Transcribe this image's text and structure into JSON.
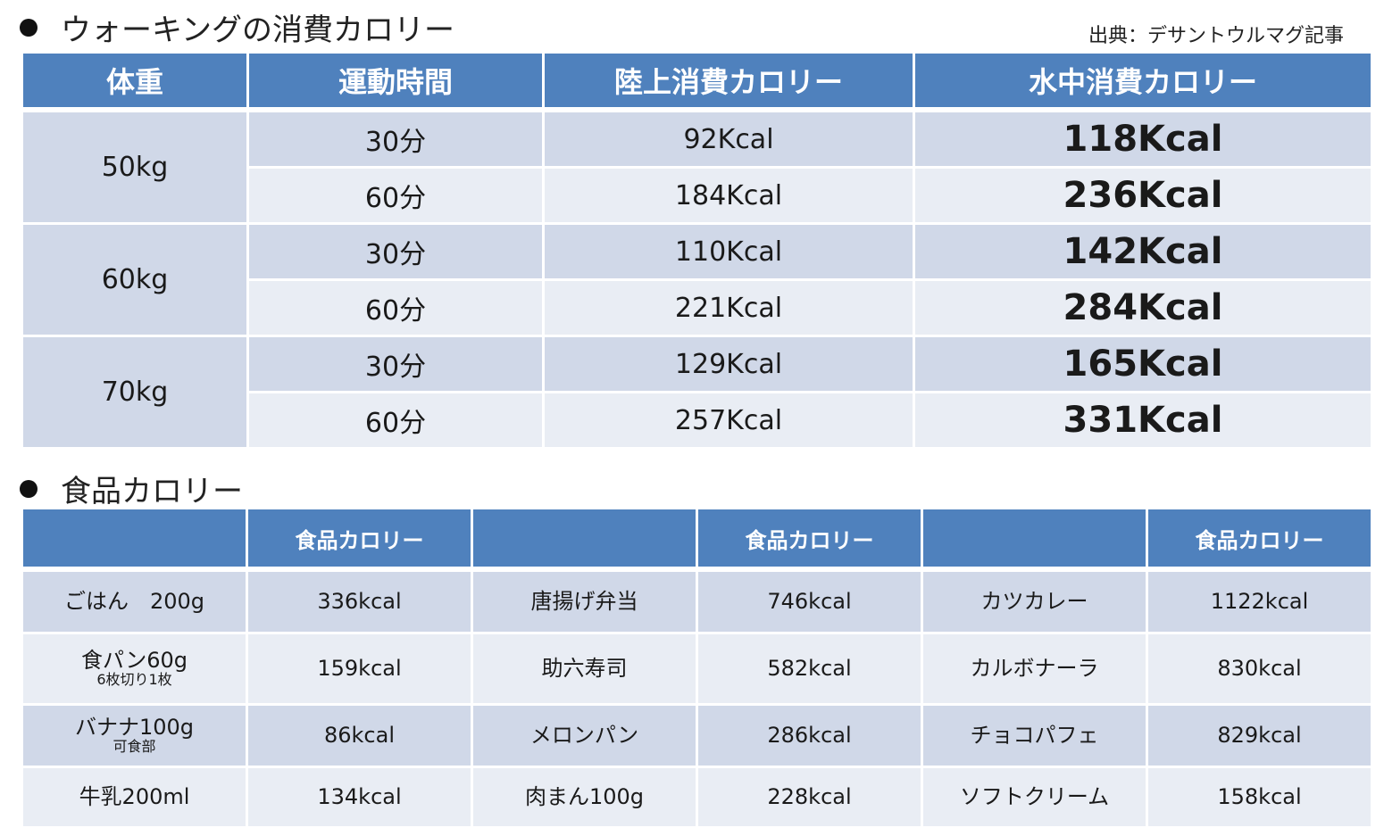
{
  "walking": {
    "title": "ウォーキングの消費カロリー",
    "source": "出典：デサントウルマグ記事",
    "headers": [
      "体重",
      "運動時間",
      "陸上消費カロリー",
      "水中消費カロリー"
    ],
    "groups": [
      {
        "weight": "50kg",
        "rows": [
          {
            "time": "30分",
            "land": "92Kcal",
            "water": "118Kcal"
          },
          {
            "time": "60分",
            "land": "184Kcal",
            "water": "236Kcal"
          }
        ]
      },
      {
        "weight": "60kg",
        "rows": [
          {
            "time": "30分",
            "land": "110Kcal",
            "water": "142Kcal"
          },
          {
            "time": "60分",
            "land": "221Kcal",
            "water": "284Kcal"
          }
        ]
      },
      {
        "weight": "70kg",
        "rows": [
          {
            "time": "30分",
            "land": "129Kcal",
            "water": "165Kcal"
          },
          {
            "time": "60分",
            "land": "257Kcal",
            "water": "331Kcal"
          }
        ]
      }
    ]
  },
  "food": {
    "title": "食品カロリー",
    "headers": [
      "",
      "食品カロリー",
      "",
      "食品カロリー",
      "",
      "食品カロリー"
    ],
    "rows": [
      {
        "cells": [
          {
            "name": "ごはん　200g",
            "sub": ""
          },
          {
            "val": "336kcal"
          },
          {
            "name": "唐揚げ弁当",
            "sub": ""
          },
          {
            "val": "746kcal"
          },
          {
            "name": "カツカレー",
            "sub": ""
          },
          {
            "val": "1122kcal"
          }
        ]
      },
      {
        "cells": [
          {
            "name": "食パン60g",
            "sub": "6枚切り1枚"
          },
          {
            "val": "159kcal"
          },
          {
            "name": "助六寿司",
            "sub": ""
          },
          {
            "val": "582kcal"
          },
          {
            "name": "カルボナーラ",
            "sub": ""
          },
          {
            "val": "830kcal"
          }
        ]
      },
      {
        "cells": [
          {
            "name": "バナナ100g",
            "sub": "可食部"
          },
          {
            "val": "86kcal"
          },
          {
            "name": "メロンパン",
            "sub": ""
          },
          {
            "val": "286kcal"
          },
          {
            "name": "チョコパフェ",
            "sub": ""
          },
          {
            "val": "829kcal"
          }
        ]
      },
      {
        "cells": [
          {
            "name": "牛乳200ml",
            "sub": ""
          },
          {
            "val": "134kcal"
          },
          {
            "name": "肉まん100g",
            "sub": ""
          },
          {
            "val": "228kcal"
          },
          {
            "name": "ソフトクリーム",
            "sub": ""
          },
          {
            "val": "158kcal"
          }
        ]
      }
    ]
  }
}
